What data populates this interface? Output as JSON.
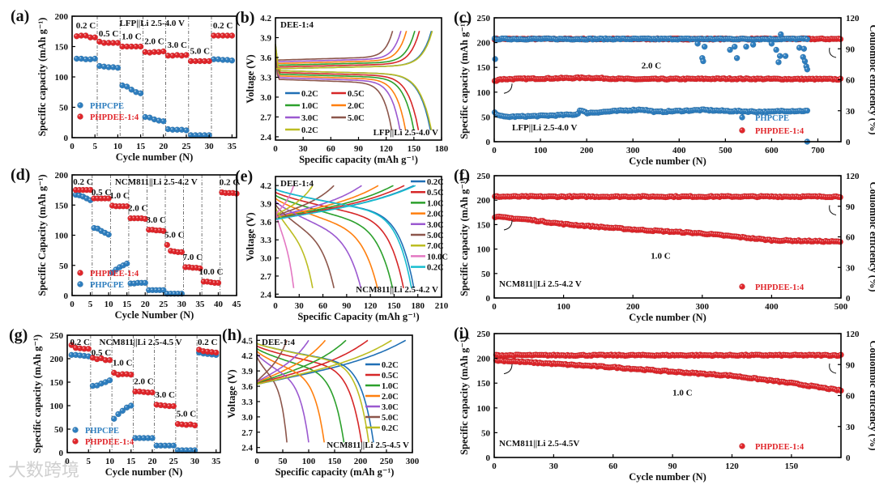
{
  "figure": {
    "watermark": "大数跨境"
  },
  "chart_data": [
    {
      "id": "a",
      "panel": "(a)",
      "type": "scatter",
      "kind": "rate",
      "xlabel": "Cycle number (N)",
      "ylabel": "Specific capacity (mAh g⁻¹)",
      "xlim": [
        0,
        36
      ],
      "ylim": [
        0,
        200
      ],
      "xticks": [
        0,
        5,
        10,
        15,
        20,
        25,
        30,
        35
      ],
      "yticks": [
        0,
        50,
        100,
        150,
        200
      ],
      "annotations": [
        "LFP||Li  2.5-4.0 V"
      ],
      "rates": [
        "0.2 C",
        "0.5 C",
        "1.0 C",
        "2.0 C",
        "3.0 C",
        "5.0 C",
        "0.2 C"
      ],
      "legend_order": [
        0,
        1
      ],
      "series": [
        {
          "name": "PHPCPE",
          "color": "#2e7ebf",
          "values": [
            130,
            130,
            129,
            129,
            130,
            118,
            117,
            116,
            116,
            115,
            86,
            84,
            79,
            75,
            73,
            34,
            33,
            30,
            28,
            27,
            14,
            13,
            13,
            13,
            12,
            4,
            4,
            4,
            4,
            4,
            129,
            129,
            128,
            128,
            127
          ]
        },
        {
          "name": "PHPDEE-1:4",
          "color": "#e0262b",
          "values": [
            167,
            168,
            168,
            165,
            165,
            158,
            156,
            156,
            156,
            156,
            150,
            150,
            150,
            150,
            150,
            141,
            140,
            141,
            141,
            142,
            135,
            135,
            136,
            135,
            136,
            126,
            126,
            126,
            126,
            126,
            168,
            168,
            168,
            168,
            168
          ]
        }
      ]
    },
    {
      "id": "b",
      "panel": "(b)",
      "type": "line",
      "kind": "voltage",
      "xlabel": "Specific capacity (mAh g⁻¹)",
      "ylabel": "Voltage (V)",
      "xlim": [
        0,
        180
      ],
      "ylim": [
        2.35,
        4.2
      ],
      "xticks": [
        0,
        30,
        60,
        90,
        120,
        150,
        180
      ],
      "yticks": [
        "2.4",
        "2.7",
        "3.0",
        "3.3",
        "3.6",
        "3.9",
        "4.2"
      ],
      "vmin": 2.5,
      "vmax": 4.0,
      "chem": "LFP",
      "annotations": [
        "DEE-1:4",
        "LFP||Li  2.5-4.0 V"
      ],
      "series": [
        {
          "name": "0.2C",
          "color": "#1f6fb5",
          "discharge": 168,
          "charge": 169
        },
        {
          "name": "0.5C",
          "color": "#d62728",
          "discharge": 155,
          "charge": 156
        },
        {
          "name": "1.0C",
          "color": "#2ca02c",
          "discharge": 150,
          "charge": 151
        },
        {
          "name": "2.0C",
          "color": "#ff7f0e",
          "discharge": 141,
          "charge": 142
        },
        {
          "name": "3.0C",
          "color": "#9b59d0",
          "discharge": 135,
          "charge": 136
        },
        {
          "name": "5.0C",
          "color": "#8c564b",
          "discharge": 126,
          "charge": 127
        },
        {
          "name": "0.2C",
          "color": "#bcbd22",
          "discharge": 169,
          "charge": 170
        }
      ]
    },
    {
      "id": "c",
      "panel": "(c)",
      "type": "scatter",
      "kind": "cycling",
      "xlabel": "Cycle number (N)",
      "ylabel": "Specific capacity (mAh g⁻¹)",
      "ylabel2": "Coulombic efficiency (%)",
      "xlim": [
        0,
        750
      ],
      "ylim": [
        0,
        250
      ],
      "y2lim": [
        0,
        120
      ],
      "xticks": [
        0,
        100,
        200,
        300,
        400,
        500,
        600,
        700
      ],
      "yticks": [
        0,
        50,
        100,
        150,
        200,
        250
      ],
      "y2ticks": [
        0,
        30,
        60,
        90,
        120
      ],
      "annotations": [
        "2.0 C",
        "LFP||Li  2.5-4.0 V"
      ],
      "legend_order": [
        0,
        1
      ],
      "series": [
        {
          "name": "PHPCPE",
          "color": "#2e7ebf",
          "last": 678,
          "capacity": {
            "x": [
              1,
              20,
              100,
              180,
              185,
              200,
              320,
              350,
              450,
              500,
              600,
              620,
              678
            ],
            "values": [
              58,
              50,
              52,
              55,
              64,
              58,
              65,
              60,
              64,
              62,
              60,
              62,
              62
            ]
          },
          "ce": 99.5,
          "ce_outliers": [
            [
              2,
              80
            ],
            [
              440,
              95
            ],
            [
              450,
              81
            ],
            [
              452,
              78
            ],
            [
              455,
              92
            ],
            [
              510,
              89
            ],
            [
              520,
              92
            ],
            [
              525,
              81
            ],
            [
              545,
              92
            ],
            [
              560,
              94
            ],
            [
              600,
              95
            ],
            [
              610,
              89
            ],
            [
              615,
              77
            ],
            [
              618,
              83
            ],
            [
              620,
              104
            ],
            [
              630,
              83
            ],
            [
              660,
              91
            ],
            [
              668,
              82
            ],
            [
              670,
              90
            ],
            [
              672,
              78
            ],
            [
              675,
              73
            ],
            [
              677,
              70
            ]
          ]
        },
        {
          "name": "PHPDEE-1:4",
          "color": "#e0262b",
          "last": 750,
          "capacity": {
            "x": [
              1,
              10,
              200,
              300,
              500,
              750
            ],
            "values": [
              122,
              126,
              129,
              126,
              127,
              126
            ]
          },
          "ce": 99.5,
          "ce_outliers": []
        }
      ]
    },
    {
      "id": "d",
      "panel": "(d)",
      "type": "scatter",
      "kind": "rate",
      "xlabel": "Cycle Number (N)",
      "ylabel": "Specific Capacity (mAh g⁻¹)",
      "xlim": [
        0,
        45
      ],
      "ylim": [
        0,
        200
      ],
      "xticks": [
        0,
        5,
        10,
        15,
        20,
        25,
        30,
        35,
        40,
        45
      ],
      "yticks": [
        0,
        50,
        100,
        150,
        200
      ],
      "annotations": [
        "NCM811||Li  2.5-4.2 V"
      ],
      "rates": [
        "0.2 C",
        "0.5 C",
        "1.0 C",
        "2.0 C",
        "3.0 C",
        "5.0 C",
        "7.0 C",
        "10.0 C",
        "0.2 C"
      ],
      "legend_order": [
        1,
        0
      ],
      "series": [
        {
          "name": "PHPCPE",
          "color": "#2e7ebf",
          "values": [
            167,
            166,
            164,
            161,
            158,
            112,
            111,
            107,
            104,
            101,
            38,
            43,
            47,
            50,
            53,
            20,
            20,
            21,
            21,
            21,
            9,
            9,
            9,
            9,
            9,
            3,
            3,
            3,
            3,
            3
          ]
        },
        {
          "name": "PHPDEE-1:4",
          "color": "#e0262b",
          "values": [
            175,
            175,
            175,
            175,
            175,
            161,
            161,
            161,
            161,
            161,
            149,
            148,
            148,
            148,
            148,
            128,
            128,
            128,
            128,
            127,
            109,
            109,
            108,
            108,
            107,
            84,
            74,
            73,
            72,
            72,
            47,
            47,
            46,
            46,
            45,
            23,
            23,
            22,
            21,
            21,
            171,
            170,
            170,
            170,
            169
          ]
        }
      ]
    },
    {
      "id": "e",
      "panel": "(e)",
      "type": "line",
      "kind": "voltage",
      "xlabel": "Specific Capacity (mAh g⁻¹)",
      "ylabel": "Voltage (V)",
      "xlim": [
        0,
        210
      ],
      "ylim": [
        2.35,
        4.35
      ],
      "xticks": [
        0,
        30,
        60,
        90,
        120,
        150,
        180,
        210
      ],
      "yticks": [
        "2.4",
        "2.7",
        "3.0",
        "3.3",
        "3.6",
        "3.9",
        "4.2"
      ],
      "vmin": 2.5,
      "vmax": 4.2,
      "chem": "NCM",
      "annotations": [
        "DEE-1:4",
        "NCM811||Li  2.5-4.2 V"
      ],
      "series": [
        {
          "name": "0.2C",
          "color": "#1f6fb5",
          "discharge": 175,
          "charge": 175
        },
        {
          "name": "0.5C",
          "color": "#d62728",
          "discharge": 162,
          "charge": 163
        },
        {
          "name": "1.0C",
          "color": "#2ca02c",
          "discharge": 148,
          "charge": 149
        },
        {
          "name": "2.0C",
          "color": "#ff7f0e",
          "discharge": 129,
          "charge": 130
        },
        {
          "name": "3.0C",
          "color": "#9b59d0",
          "discharge": 108,
          "charge": 109
        },
        {
          "name": "5.0C",
          "color": "#8c564b",
          "discharge": 74,
          "charge": 74
        },
        {
          "name": "7.0C",
          "color": "#bcbd22",
          "discharge": 47,
          "charge": 47
        },
        {
          "name": "10.0C",
          "color": "#e377c2",
          "discharge": 23,
          "charge": 23
        },
        {
          "name": "0.2C",
          "color": "#17becf",
          "discharge": 172,
          "charge": 177
        }
      ]
    },
    {
      "id": "f",
      "panel": "(f)",
      "type": "scatter",
      "kind": "cycling",
      "xlabel": "Cycle number (N)",
      "ylabel": "Specific capacity (mAh g⁻¹)",
      "ylabel2": "Coulombic efficiency (%)",
      "xlim": [
        0,
        500
      ],
      "ylim": [
        0,
        250
      ],
      "y2lim": [
        0,
        120
      ],
      "xticks": [
        0,
        100,
        200,
        300,
        400,
        500
      ],
      "yticks": [
        0,
        50,
        100,
        150,
        200,
        250
      ],
      "y2ticks": [
        0,
        30,
        60,
        90,
        120
      ],
      "annotations": [
        "1.0 C",
        "NCM811||Li  2.5-4.2 V"
      ],
      "legend_order": [
        0
      ],
      "series": [
        {
          "name": "PHPDEE-1:4",
          "color": "#e0262b",
          "last": 500,
          "capacity": {
            "x": [
              1,
              50,
              100,
              200,
              300,
              350,
              400,
              500
            ],
            "values": [
              166,
              160,
              151,
              140,
              132,
              125,
              118,
              115
            ]
          },
          "ce": 99.5,
          "ce_outliers": []
        }
      ]
    },
    {
      "id": "g",
      "panel": "(g)",
      "type": "scatter",
      "kind": "rate",
      "xlabel": "Cycle number (N)",
      "ylabel": "Specific capacity (mAh g⁻¹)",
      "xlim": [
        0,
        36
      ],
      "ylim": [
        0,
        250
      ],
      "xticks": [
        0,
        5,
        10,
        15,
        20,
        25,
        30,
        35
      ],
      "yticks": [
        0,
        50,
        100,
        150,
        200,
        250
      ],
      "annotations": [
        "NCM811||Li",
        "2.5-4.5 V"
      ],
      "rates": [
        "0.2 C",
        "0.5 C",
        "1.0 C",
        "2.0 C",
        "3.0 C",
        "5.0 C",
        "0.2 C"
      ],
      "legend_order": [
        0,
        1
      ],
      "series": [
        {
          "name": "PHPCPE",
          "color": "#2e7ebf",
          "values": [
            208,
            208,
            207,
            206,
            205,
            142,
            143,
            147,
            150,
            154,
            72,
            82,
            89,
            96,
            100,
            31,
            31,
            31,
            31,
            31,
            15,
            15,
            15,
            15,
            15,
            5,
            5,
            5,
            5,
            5,
            213,
            211,
            210,
            209,
            208
          ]
        },
        {
          "name": "PHPDEE-1:4",
          "color": "#e0262b",
          "values": [
            229,
            223,
            222,
            221,
            221,
            202,
            199,
            201,
            197,
            197,
            170,
            166,
            167,
            167,
            166,
            130,
            130,
            129,
            128,
            128,
            102,
            101,
            100,
            99,
            99,
            61,
            60,
            59,
            60,
            58,
            219,
            216,
            215,
            214,
            213
          ]
        }
      ]
    },
    {
      "id": "h",
      "panel": "(h)",
      "type": "line",
      "kind": "voltage",
      "xlabel": "Specific capacity (mAh g⁻¹)",
      "ylabel": "Voltage (V)",
      "xlim": [
        0,
        300
      ],
      "ylim": [
        2.3,
        4.6
      ],
      "xticks": [
        0,
        50,
        100,
        150,
        200,
        250,
        300
      ],
      "yticks": [
        "2.4",
        "2.7",
        "3.0",
        "3.3",
        "3.6",
        "3.9",
        "4.2",
        "4.5"
      ],
      "vmin": 2.5,
      "vmax": 4.5,
      "chem": "NCM",
      "annotations": [
        "DEE-1:4",
        "NCM811||Li    2.5-4.5 V"
      ],
      "series": [
        {
          "name": "0.2C",
          "color": "#1f6fb5",
          "discharge": 225,
          "charge": 287
        },
        {
          "name": "0.5C",
          "color": "#d62728",
          "discharge": 202,
          "charge": 214
        },
        {
          "name": "1.0C",
          "color": "#2ca02c",
          "discharge": 168,
          "charge": 172
        },
        {
          "name": "2.0C",
          "color": "#ff7f0e",
          "discharge": 130,
          "charge": 132
        },
        {
          "name": "3.0C",
          "color": "#9b59d0",
          "discharge": 100,
          "charge": 100
        },
        {
          "name": "5.0C",
          "color": "#8c564b",
          "discharge": 58,
          "charge": 58
        },
        {
          "name": "0.2C",
          "color": "#bcbd22",
          "discharge": 216,
          "charge": 260
        }
      ]
    },
    {
      "id": "i",
      "panel": "(i)",
      "type": "scatter",
      "kind": "cycling",
      "xlabel": "Cycle number (N)",
      "ylabel": "Specific capacity (mAh g⁻¹)",
      "ylabel2": "Coulombic efficiency (%)",
      "xlim": [
        0,
        175
      ],
      "ylim": [
        0,
        250
      ],
      "y2lim": [
        0,
        120
      ],
      "xticks": [
        0,
        30,
        60,
        90,
        120,
        150
      ],
      "yticks": [
        0,
        50,
        100,
        150,
        200,
        250
      ],
      "y2ticks": [
        0,
        30,
        60,
        90,
        120
      ],
      "annotations": [
        "1.0 C",
        "NCM811||Li  2.5-4.5V"
      ],
      "legend_order": [
        0
      ],
      "series": [
        {
          "name": "PHPDEE-1:4",
          "color": "#e0262b",
          "last": 175,
          "capacity": {
            "x": [
              1,
              30,
              60,
              90,
              120,
              150,
              175
            ],
            "values": [
              196,
              189,
              182,
              173,
              165,
              150,
              135
            ]
          },
          "ce": 99,
          "ce_outliers": []
        }
      ]
    }
  ]
}
